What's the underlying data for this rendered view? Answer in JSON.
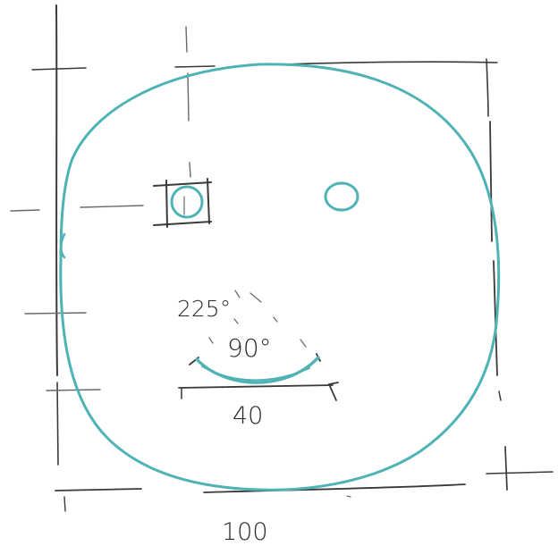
{
  "labels": {
    "outer_angle": "225°",
    "smile_angle": "90°",
    "smile_width": "40",
    "face_size": "100"
  },
  "colors": {
    "accent": "#4fb3b5",
    "pencil": "#3a3a3a"
  }
}
